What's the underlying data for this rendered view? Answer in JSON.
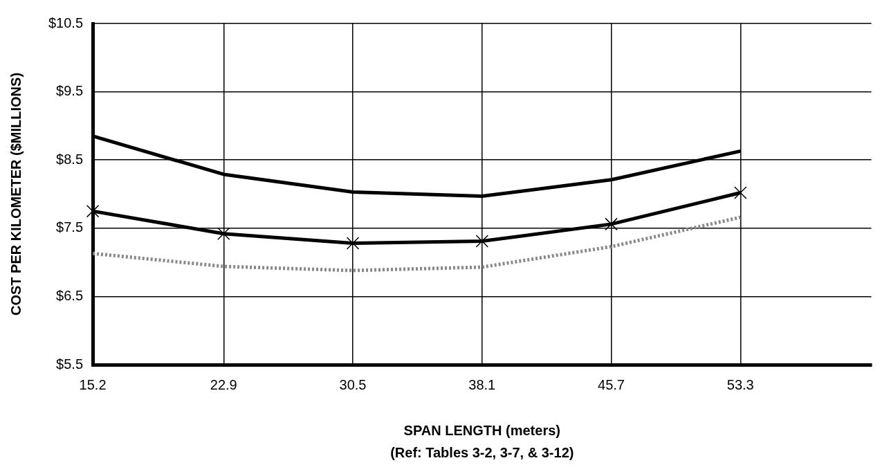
{
  "chart_data": {
    "type": "line",
    "xlabel": "SPAN LENGTH (meters)",
    "ylabel": "COST PER KILOMETER ($MILLIONS)",
    "annotations": [
      "(Ref: Tables 3-2, 3-7, & 3-12)"
    ],
    "x": [
      15.2,
      22.9,
      30.5,
      38.1,
      45.7,
      53.3
    ],
    "xlim": [
      15.2,
      61
    ],
    "xticks": [
      15.2,
      22.9,
      30.5,
      38.1,
      45.7,
      53.3
    ],
    "ylim": [
      5.5,
      10.5
    ],
    "yticks": [
      {
        "value": 5.5,
        "label": "$5.5"
      },
      {
        "value": 6.5,
        "label": "$6.5"
      },
      {
        "value": 7.5,
        "label": "$7.5"
      },
      {
        "value": 8.5,
        "label": "$8.5"
      },
      {
        "value": 9.5,
        "label": "$9.5"
      },
      {
        "value": 10.5,
        "label": "$10.5"
      }
    ],
    "grid": true,
    "legend": false,
    "series": [
      {
        "color": "#000000",
        "values": [
          8.85,
          8.29,
          8.03,
          7.97,
          8.21,
          8.63
        ],
        "marker": "none",
        "line_style": "solid"
      },
      {
        "color": "#000000",
        "values": [
          7.75,
          7.42,
          7.28,
          7.31,
          7.56,
          8.02
        ],
        "marker": "cross",
        "line_style": "solid"
      },
      {
        "color": "#888888",
        "values": [
          7.13,
          6.94,
          6.88,
          6.93,
          7.23,
          7.66
        ],
        "marker": "none",
        "line_style": "dotted"
      }
    ]
  }
}
